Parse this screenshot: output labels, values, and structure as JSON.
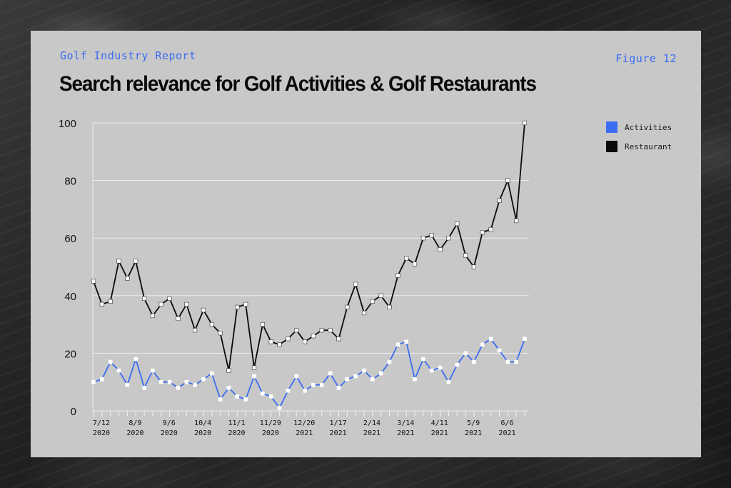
{
  "header": {
    "kicker": "Golf Industry Report",
    "figure_label": "Figure 12",
    "title": "Search relevance for Golf Activities & Golf Restaurants"
  },
  "colors": {
    "activities": "#3b6cf2",
    "restaurant": "#0a0a0a",
    "grid": "#ececec",
    "panel": "#c8c8c8"
  },
  "chart_data": {
    "type": "line",
    "title": "Search relevance for Golf Activities & Golf Restaurants",
    "xlabel": "",
    "ylabel": "",
    "ylim": [
      0,
      100
    ],
    "yticks": [
      0,
      20,
      40,
      60,
      80,
      100
    ],
    "grid": "horizontal",
    "legend_position": "top-right",
    "x_tick_labels": [
      {
        "week": "7/12",
        "year": "2020"
      },
      {
        "week": "8/9",
        "year": "2020"
      },
      {
        "week": "9/6",
        "year": "2020"
      },
      {
        "week": "10/4",
        "year": "2020"
      },
      {
        "week": "11/1",
        "year": "2020"
      },
      {
        "week": "11/29",
        "year": "2020"
      },
      {
        "week": "12/20",
        "year": "2021"
      },
      {
        "week": "1/17",
        "year": "2021"
      },
      {
        "week": "2/14",
        "year": "2021"
      },
      {
        "week": "3/14",
        "year": "2021"
      },
      {
        "week": "4/11",
        "year": "2021"
      },
      {
        "week": "5/9",
        "year": "2021"
      },
      {
        "week": "6/6",
        "year": "2021"
      }
    ],
    "series": [
      {
        "name": "Activities",
        "values": [
          10,
          11,
          17,
          14,
          9,
          18,
          8,
          14,
          10,
          10,
          8,
          10,
          9,
          11,
          13,
          4,
          8,
          5,
          4,
          12,
          6,
          5,
          1,
          7,
          12,
          7,
          9,
          9,
          13,
          8,
          11,
          12,
          14,
          11,
          13,
          17,
          23,
          24,
          11,
          18,
          14,
          15,
          10,
          16,
          20,
          17,
          23,
          25,
          21,
          17,
          17,
          25
        ]
      },
      {
        "name": "Restaurant",
        "values": [
          45,
          37,
          38,
          52,
          46,
          52,
          39,
          33,
          37,
          39,
          32,
          37,
          28,
          35,
          30,
          27,
          14,
          36,
          37,
          15,
          30,
          24,
          23,
          25,
          28,
          24,
          26,
          28,
          28,
          25,
          36,
          44,
          34,
          38,
          40,
          36,
          47,
          53,
          51,
          60,
          61,
          56,
          60,
          65,
          54,
          50,
          62,
          63,
          73,
          80,
          66,
          100
        ]
      }
    ]
  }
}
